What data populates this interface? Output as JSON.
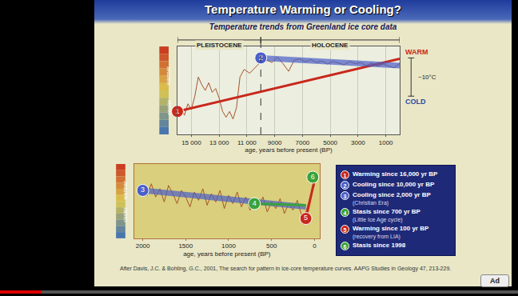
{
  "slide": {
    "title": "Temperature Warming or Cooling?",
    "subtitle": "Temperature trends from Greenland ice core data",
    "source": "After Davis, J.C. & Bohling, G.C., 2001, The search for pattern in ice-core temperature curves. AAPG Studies in Geology 47, 213-229.",
    "legend_items": [
      {
        "number": "1",
        "text": "Warming since 16,000 yr BP",
        "color": "#c8281c"
      },
      {
        "number": "2",
        "text": "Cooling since 10,000 yr BP",
        "color": "#4a5fc8"
      },
      {
        "number": "3",
        "text": "Cooling since 2,000 yr BP",
        "note": "(Christian Era)",
        "color": "#4a5fc8"
      },
      {
        "number": "4",
        "text": "Stasis since 700 yr BP",
        "note": "(Little Ice Age cycle)",
        "color": "#3aa23a"
      },
      {
        "number": "5",
        "text": "Warming since 100 yr BP",
        "note": "(recovery from LIA)",
        "color": "#c8281c"
      },
      {
        "number": "6",
        "text": "Stasis since 1998",
        "color": "#3aa23a"
      }
    ]
  },
  "player": {
    "button": "Ad"
  },
  "chart_data": [
    {
      "type": "line",
      "x_label": "age, years before present (BP)",
      "color": "#a4552a",
      "x": [
        16000,
        15750,
        15500,
        15250,
        15000,
        14750,
        14500,
        14250,
        14000,
        13750,
        13500,
        13250,
        13000,
        12750,
        12500,
        12250,
        12000,
        11750,
        11500,
        11200,
        10800,
        10400,
        10000,
        9600,
        9200,
        8800,
        8400,
        8000,
        7600,
        7200,
        6800,
        6400,
        6000,
        5600,
        5200,
        4800,
        4400,
        4000,
        3600,
        3200,
        2800,
        2400,
        2000,
        1600,
        1200,
        800,
        400,
        0
      ],
      "values": [
        -44,
        -43,
        -45,
        -42,
        -43.5,
        -40,
        -35,
        -37,
        -38.5,
        -36.5,
        -39,
        -38,
        -40.5,
        -44,
        -45.5,
        -44,
        -46,
        -43,
        -35,
        -33,
        -34,
        -32.5,
        -31,
        -30.5,
        -31.2,
        -29.8,
        -31.5,
        -33.5,
        -30.6,
        -30.2,
        -31,
        -30.4,
        -31.2,
        -30.8,
        -31.6,
        -30.9,
        -31.3,
        -31.8,
        -30.9,
        -31.5,
        -31.2,
        -32,
        -31.3,
        -32.2,
        -31.6,
        -32.1,
        -32.6,
        -31.4
      ],
      "xlim": [
        16000,
        0
      ],
      "xticks": [
        {
          "value": 15000,
          "label": "15 000"
        },
        {
          "value": 13000,
          "label": "13 000"
        },
        {
          "value": 11000,
          "label": "11 000"
        },
        9000,
        7000,
        5000,
        3000,
        1000
      ],
      "ylim": [
        -50,
        -27
      ],
      "tick_labels": "x",
      "grid": true,
      "y_high_label": "warmer",
      "y_low_label": "cooler",
      "warm_label": "WARM",
      "cold_label": "COLD",
      "scale_bar": {
        "label": "~10°C",
        "from": -40,
        "to": -30
      },
      "eras": [
        {
          "name": "PLEISTOCENE",
          "from": 16000,
          "to": 10000
        },
        {
          "name": "HOLOCENE",
          "from": 10000,
          "to": 0
        }
      ],
      "trends": [
        {
          "name": "1",
          "color": "#c8281c",
          "x": [
            16000,
            0
          ],
          "y": [
            -44,
            -30.2
          ]
        },
        {
          "name": "2",
          "color": "#4a5fc8",
          "line_style": "band",
          "x": [
            10000,
            0
          ],
          "y": [
            -30,
            -32
          ]
        }
      ]
    },
    {
      "type": "line",
      "x_label": "age, years before present (BP)",
      "color": "#a4552a",
      "x": [
        2000,
        1950,
        1900,
        1850,
        1800,
        1750,
        1700,
        1650,
        1600,
        1550,
        1500,
        1450,
        1400,
        1350,
        1300,
        1250,
        1200,
        1150,
        1100,
        1050,
        1000,
        950,
        900,
        850,
        800,
        750,
        700,
        650,
        600,
        550,
        500,
        450,
        400,
        350,
        300,
        250,
        200,
        150,
        100,
        50,
        0
      ],
      "values": [
        -30.4,
        -30.9,
        -30.2,
        -31,
        -30.5,
        -31.3,
        -30.3,
        -30.8,
        -31.4,
        -30.6,
        -31,
        -31.6,
        -30.7,
        -31.2,
        -30.5,
        -31.5,
        -30.8,
        -31.3,
        -30.6,
        -31.7,
        -30.9,
        -31.4,
        -30.7,
        -31.6,
        -31,
        -31.8,
        -31.1,
        -31.6,
        -31,
        -31.9,
        -31.3,
        -31.7,
        -31.1,
        -32,
        -31.4,
        -31.8,
        -31.2,
        -32.1,
        -31.9,
        -31,
        -30.3
      ],
      "xlim": [
        2100,
        -60
      ],
      "xticks": [
        2000,
        1500,
        1000,
        500,
        0
      ],
      "ylim": [
        -33.5,
        -29
      ],
      "tick_labels": "x",
      "grid": false,
      "y_high_label": "warmer",
      "y_low_label": "cooler",
      "trends": [
        {
          "name": "3",
          "color": "#4a5fc8",
          "line_style": "band",
          "x": [
            2000,
            100
          ],
          "y": [
            -30.6,
            -31.6
          ]
        },
        {
          "name": "4",
          "color": "#3aa23a",
          "x": [
            700,
            100
          ],
          "y": [
            -31.4,
            -31.5
          ]
        },
        {
          "name": "5",
          "color": "#c8281c",
          "x": [
            100,
            0
          ],
          "y": [
            -32.3,
            -30
          ]
        },
        {
          "name": "6",
          "color": "#3aa23a",
          "x": [
            20,
            0
          ],
          "y": [
            -29.8,
            -29.8
          ]
        }
      ]
    }
  ]
}
